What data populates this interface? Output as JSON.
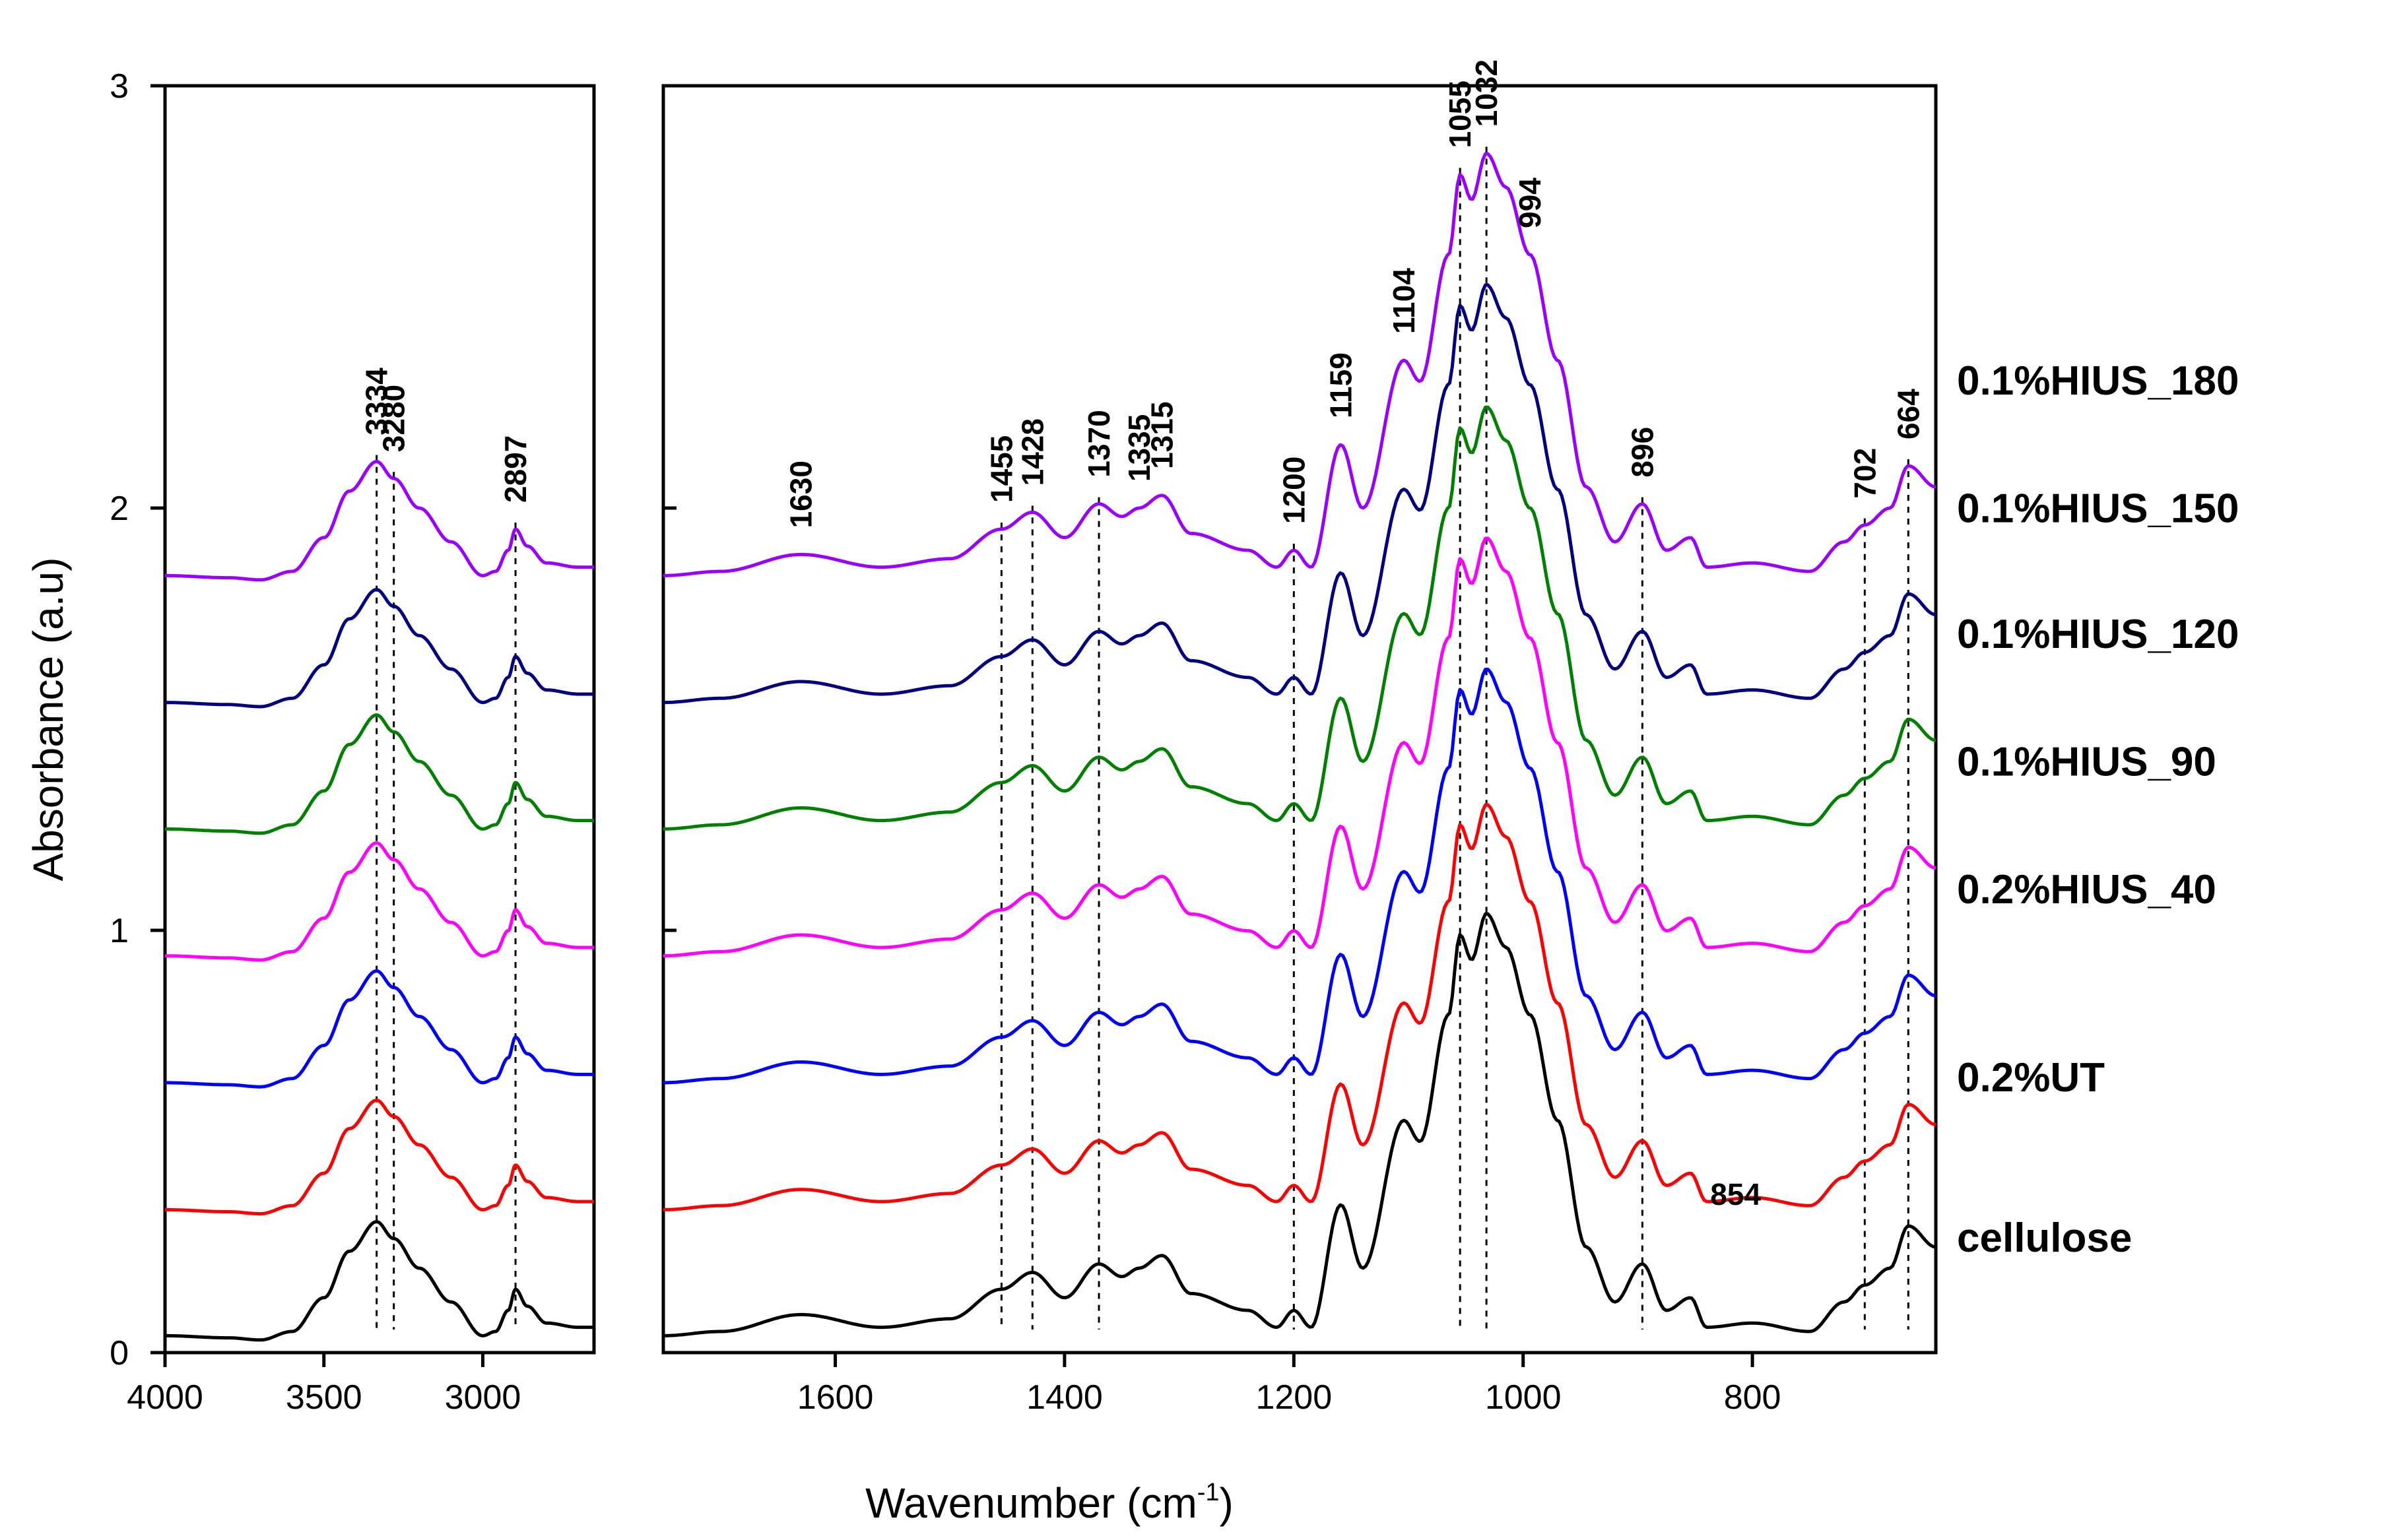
{
  "chart_data": {
    "type": "line",
    "xlabel": "Wavenumber (cm",
    "xlabel_sup": "-1",
    "xlabel_close": ")",
    "ylabel": "Absorbance (a.u)",
    "ylim": [
      0,
      3
    ],
    "y_ticks": [
      {
        "value": 0,
        "label": "0"
      },
      {
        "value": 1,
        "label": "1"
      },
      {
        "value": 2,
        "label": "2"
      },
      {
        "value": 3,
        "label": "3"
      }
    ],
    "panels": [
      {
        "name": "high-wavenumber",
        "xlim": [
          4000,
          2650
        ],
        "x_ticks": [
          {
            "value": 4000,
            "label": "4000"
          },
          {
            "value": 3500,
            "label": "3500"
          },
          {
            "value": 3000,
            "label": "3000"
          }
        ],
        "peaks": [
          {
            "position": 3334,
            "label": "3334"
          },
          {
            "position": 3280,
            "label": "3280"
          },
          {
            "position": 2897,
            "label": "2897"
          }
        ]
      },
      {
        "name": "fingerprint",
        "xlim": [
          1750,
          640
        ],
        "x_ticks": [
          {
            "value": 1600,
            "label": "1600"
          },
          {
            "value": 1400,
            "label": "1400"
          },
          {
            "value": 1200,
            "label": "1200"
          },
          {
            "value": 1000,
            "label": "1000"
          },
          {
            "value": 800,
            "label": "800"
          }
        ],
        "peaks": [
          {
            "position": 1630,
            "label": "1630",
            "dashed": false
          },
          {
            "position": 1455,
            "label": "1455",
            "dashed": true
          },
          {
            "position": 1428,
            "label": "1428",
            "dashed": true
          },
          {
            "position": 1370,
            "label": "1370",
            "dashed": true
          },
          {
            "position": 1335,
            "label": "1335",
            "dashed": false
          },
          {
            "position": 1315,
            "label": "1315",
            "dashed": false
          },
          {
            "position": 1200,
            "label": "1200",
            "dashed": true
          },
          {
            "position": 1159,
            "label": "1159",
            "dashed": false
          },
          {
            "position": 1104,
            "label": "1104",
            "dashed": false
          },
          {
            "position": 1055,
            "label": "1055",
            "dashed": true
          },
          {
            "position": 1032,
            "label": "1032",
            "dashed": true
          },
          {
            "position": 994,
            "label": "994",
            "dashed": false
          },
          {
            "position": 896,
            "label": "896",
            "dashed": true
          },
          {
            "position": 854,
            "label": "854",
            "dashed": false
          },
          {
            "position": 702,
            "label": "702",
            "dashed": true
          },
          {
            "position": 664,
            "label": "664",
            "dashed": true
          }
        ]
      }
    ],
    "series": [
      {
        "name": "cellulose",
        "color": "#000000",
        "offset": 0.0,
        "peak_scale": 1.0
      },
      {
        "name": "0.2%UT",
        "color": "#ff0000",
        "offset": 0.3,
        "peak_scale": 0.96
      },
      {
        "name": "0.2%HIUS_40",
        "color": "#0000ff",
        "offset": 0.6,
        "peak_scale": 0.98
      },
      {
        "name": "0.1%HIUS_90",
        "color": "#ff00ff",
        "offset": 0.9,
        "peak_scale": 0.99
      },
      {
        "name": "0.1%HIUS_120",
        "color": "#008000",
        "offset": 1.2,
        "peak_scale": 1.0
      },
      {
        "name": "0.1%HIUS_150",
        "color": "#000080",
        "offset": 1.5,
        "peak_scale": 0.99
      },
      {
        "name": "0.1%HIUS_180",
        "color": "#9900ff",
        "offset": 1.8,
        "peak_scale": 1.0
      }
    ],
    "profile_high": [
      {
        "x": 4000,
        "y": 0.04
      },
      {
        "x": 3800,
        "y": 0.035
      },
      {
        "x": 3700,
        "y": 0.03
      },
      {
        "x": 3600,
        "y": 0.05
      },
      {
        "x": 3500,
        "y": 0.13
      },
      {
        "x": 3420,
        "y": 0.24
      },
      {
        "x": 3334,
        "y": 0.31
      },
      {
        "x": 3280,
        "y": 0.27
      },
      {
        "x": 3200,
        "y": 0.2
      },
      {
        "x": 3100,
        "y": 0.12
      },
      {
        "x": 3000,
        "y": 0.04
      },
      {
        "x": 2960,
        "y": 0.05
      },
      {
        "x": 2920,
        "y": 0.1
      },
      {
        "x": 2897,
        "y": 0.15
      },
      {
        "x": 2860,
        "y": 0.11
      },
      {
        "x": 2800,
        "y": 0.07
      },
      {
        "x": 2700,
        "y": 0.06
      },
      {
        "x": 2650,
        "y": 0.06
      }
    ],
    "profile_fp": [
      {
        "x": 1750,
        "y": 0.04
      },
      {
        "x": 1700,
        "y": 0.05
      },
      {
        "x": 1630,
        "y": 0.09
      },
      {
        "x": 1560,
        "y": 0.06
      },
      {
        "x": 1500,
        "y": 0.08
      },
      {
        "x": 1455,
        "y": 0.15
      },
      {
        "x": 1428,
        "y": 0.19
      },
      {
        "x": 1400,
        "y": 0.13
      },
      {
        "x": 1370,
        "y": 0.21
      },
      {
        "x": 1350,
        "y": 0.18
      },
      {
        "x": 1335,
        "y": 0.2
      },
      {
        "x": 1315,
        "y": 0.23
      },
      {
        "x": 1290,
        "y": 0.14
      },
      {
        "x": 1240,
        "y": 0.1
      },
      {
        "x": 1215,
        "y": 0.06
      },
      {
        "x": 1200,
        "y": 0.1
      },
      {
        "x": 1185,
        "y": 0.06
      },
      {
        "x": 1159,
        "y": 0.35
      },
      {
        "x": 1140,
        "y": 0.2
      },
      {
        "x": 1104,
        "y": 0.55
      },
      {
        "x": 1090,
        "y": 0.5
      },
      {
        "x": 1065,
        "y": 0.8
      },
      {
        "x": 1055,
        "y": 0.99
      },
      {
        "x": 1045,
        "y": 0.93
      },
      {
        "x": 1032,
        "y": 1.04
      },
      {
        "x": 1015,
        "y": 0.96
      },
      {
        "x": 994,
        "y": 0.8
      },
      {
        "x": 970,
        "y": 0.55
      },
      {
        "x": 945,
        "y": 0.25
      },
      {
        "x": 920,
        "y": 0.12
      },
      {
        "x": 896,
        "y": 0.21
      },
      {
        "x": 875,
        "y": 0.1
      },
      {
        "x": 854,
        "y": 0.13
      },
      {
        "x": 840,
        "y": 0.06
      },
      {
        "x": 800,
        "y": 0.07
      },
      {
        "x": 750,
        "y": 0.05
      },
      {
        "x": 720,
        "y": 0.12
      },
      {
        "x": 702,
        "y": 0.16
      },
      {
        "x": 680,
        "y": 0.2
      },
      {
        "x": 664,
        "y": 0.3
      },
      {
        "x": 640,
        "y": 0.25
      }
    ]
  }
}
